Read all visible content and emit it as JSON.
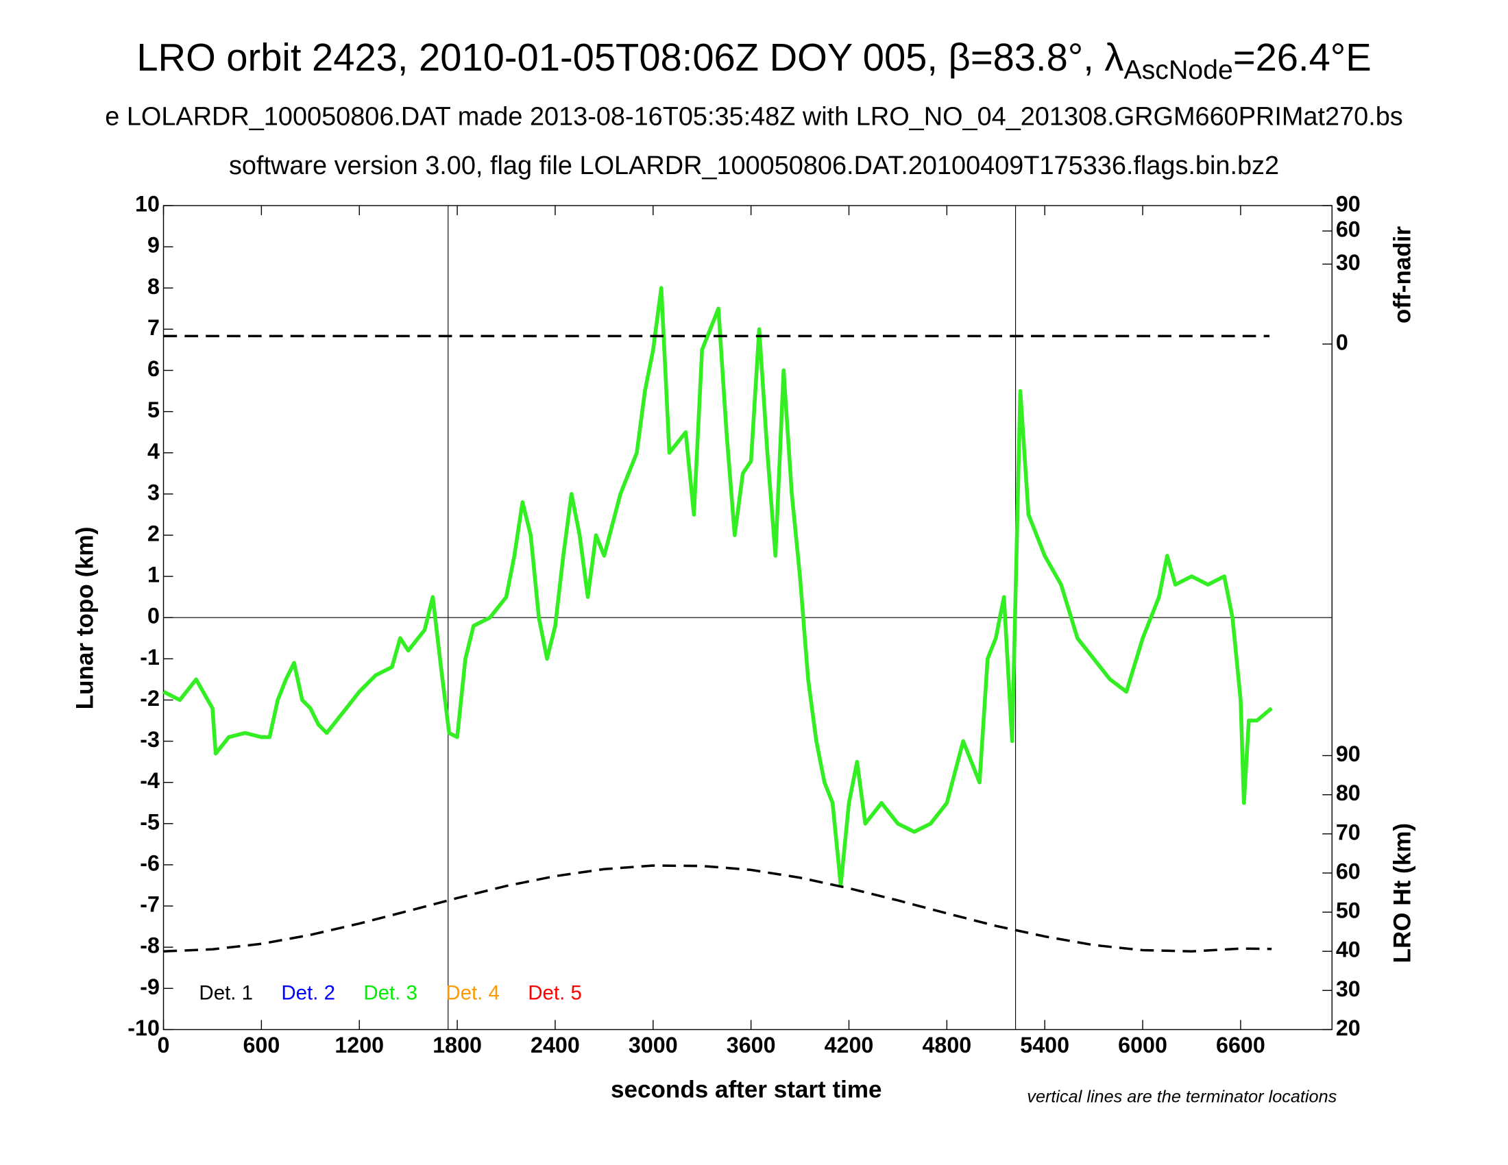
{
  "chart_data": {
    "type": "line",
    "title_pre": "LRO orbit 2423, 2010-01-05T08:06Z DOY 005, β=83.8°, λ",
    "title_sub": "AscNode",
    "title_post": "=26.4°E",
    "subtitle": "e LOLARDR_100050806.DAT made 2013-08-16T05:35:48Z with LRO_NO_04_201308.GRGM660PRIMat270.bs",
    "subtitle2": "software version 3.00, flag file LOLARDR_100050806.DAT.20100409T175336.flags.bin.bz2",
    "xlabel": "seconds after start time",
    "ylabel": "Lunar topo (km)",
    "y2label": "LRO Ht (km)",
    "y3label": "off-nadir",
    "annotation": "vertical lines are the terminator locations",
    "xlim": [
      0,
      7160
    ],
    "xticks": [
      0,
      600,
      1200,
      1800,
      2400,
      3000,
      3600,
      4200,
      4800,
      5400,
      6000,
      6600
    ],
    "ylim": [
      -10,
      10
    ],
    "yticks": [
      -10,
      -9,
      -8,
      -7,
      -6,
      -5,
      -4,
      -3,
      -2,
      -1,
      0,
      1,
      2,
      3,
      4,
      5,
      6,
      7,
      8,
      9,
      10
    ],
    "y2lim": [
      20,
      230.5
    ],
    "y2ticks": [
      20,
      30,
      40,
      50,
      60,
      70,
      80,
      90
    ],
    "y3scale": "sqrt",
    "y3lim": [
      0,
      90
    ],
    "y3ticks": [
      0,
      30,
      60,
      90
    ],
    "terminators": [
      1744,
      5221
    ],
    "detectors": [
      {
        "name": "Det. 1",
        "color": "#000000"
      },
      {
        "name": "Det. 2",
        "color": "#0000ff"
      },
      {
        "name": "Det. 3",
        "color": "#00ee00"
      },
      {
        "name": "Det. 4",
        "color": "#ff9900"
      },
      {
        "name": "Det. 5",
        "color": "#ff0000"
      }
    ],
    "series": [
      {
        "color": "#33ee22",
        "x": [
          0,
          100,
          200,
          300,
          320,
          400,
          500,
          600,
          650,
          700,
          750,
          800,
          850,
          900,
          950,
          1000,
          1100,
          1200,
          1300,
          1400,
          1450,
          1500,
          1600,
          1650,
          1700,
          1750,
          1800,
          1850,
          1900,
          2000,
          2100,
          2150,
          2200,
          2250,
          2300,
          2350,
          2400,
          2450,
          2500,
          2550,
          2600,
          2650,
          2700,
          2800,
          2900,
          2950,
          3000,
          3050,
          3100,
          3200,
          3250,
          3300,
          3350,
          3400,
          3450,
          3500,
          3550,
          3600,
          3650,
          3700,
          3750,
          3800,
          3850,
          3900,
          3950,
          4000,
          4050,
          4100,
          4150,
          4200,
          4250,
          4300,
          4400,
          4500,
          4600,
          4700,
          4800,
          4900,
          5000,
          5050,
          5100,
          5150,
          5200,
          5250,
          5300,
          5350,
          5400,
          5500,
          5600,
          5700,
          5800,
          5900,
          6000,
          6100,
          6150,
          6200,
          6300,
          6400,
          6500,
          6550,
          6600,
          6620,
          6650,
          6700,
          6790
        ],
        "values": [
          -1.8,
          -2.0,
          -1.5,
          -2.2,
          -3.3,
          -2.9,
          -2.8,
          -2.9,
          -2.9,
          -2.0,
          -1.5,
          -1.1,
          -2.0,
          -2.2,
          -2.6,
          -2.8,
          -2.3,
          -1.8,
          -1.4,
          -1.2,
          -0.5,
          -0.8,
          -0.3,
          0.5,
          -1.2,
          -2.8,
          -2.9,
          -1.0,
          -0.2,
          0.0,
          0.5,
          1.5,
          2.8,
          2.0,
          0.0,
          -1.0,
          -0.2,
          1.5,
          3.0,
          2.0,
          0.5,
          2.0,
          1.5,
          3.0,
          4.0,
          5.5,
          6.5,
          8.0,
          4.0,
          4.5,
          2.5,
          6.5,
          7.0,
          7.5,
          4.5,
          2.0,
          3.5,
          3.8,
          7.0,
          4.0,
          1.5,
          6.0,
          3.0,
          1.0,
          -1.5,
          -3.0,
          -4.0,
          -4.5,
          -6.5,
          -4.5,
          -3.5,
          -5.0,
          -4.5,
          -5.0,
          -5.2,
          -5.0,
          -4.5,
          -3.0,
          -4.0,
          -1.0,
          -0.5,
          0.5,
          -3.0,
          5.5,
          2.5,
          2.0,
          1.5,
          0.8,
          -0.5,
          -1.0,
          -1.5,
          -1.8,
          -0.5,
          0.5,
          1.5,
          0.8,
          1.0,
          0.8,
          1.0,
          0.0,
          -2.0,
          -4.5,
          -2.5,
          -2.5,
          -2.2
        ]
      },
      {
        "axis": "y2",
        "color": "#000000",
        "dashed": true,
        "x": [
          0,
          300,
          600,
          900,
          1200,
          1500,
          1800,
          2100,
          2400,
          2700,
          3000,
          3300,
          3600,
          3900,
          4200,
          4500,
          4800,
          5100,
          5400,
          5700,
          6000,
          6300,
          6600,
          6790
        ],
        "values": [
          40.0,
          40.5,
          41.9,
          44.2,
          47.1,
          50.3,
          53.6,
          56.7,
          59.2,
          61.0,
          61.9,
          61.8,
          60.8,
          58.8,
          56.1,
          53.0,
          49.7,
          46.5,
          43.8,
          41.6,
          40.3,
          40.0,
          40.7,
          40.6
        ]
      },
      {
        "axis": "y3",
        "color": "#000000",
        "dashed": true,
        "x": [
          0,
          6777
        ],
        "values": [
          0.3,
          0.3
        ]
      }
    ]
  }
}
